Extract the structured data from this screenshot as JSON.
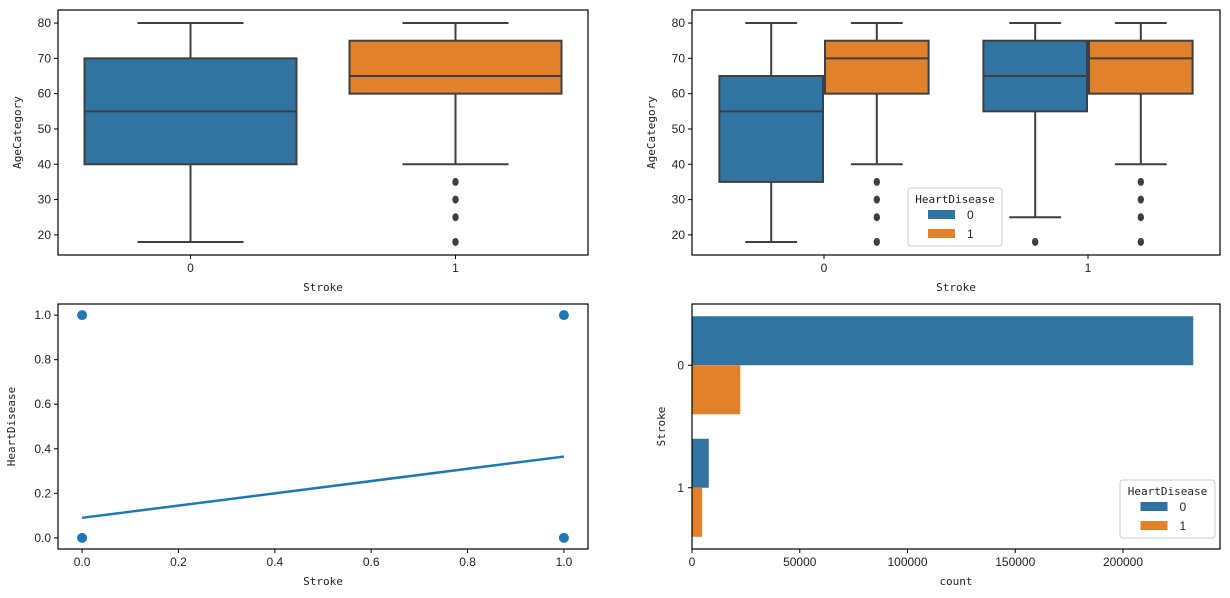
{
  "colors": {
    "blue": "#3274a1",
    "orange": "#e1812c",
    "line_blue": "#1f77b4",
    "edge": "#3f3f3f"
  },
  "chart_data": [
    {
      "type": "box",
      "id": "box-simple",
      "xlabel": "Stroke",
      "ylabel": "AgeCategory",
      "categories": [
        "0",
        "1"
      ],
      "ylim": [
        14.3,
        83.7
      ],
      "yticks": [
        20,
        30,
        40,
        50,
        60,
        70,
        80
      ],
      "boxes": [
        {
          "category": "0",
          "color": "blue",
          "whislo": 18,
          "q1": 40,
          "med": 55,
          "q3": 70,
          "whishi": 80,
          "fliers": []
        },
        {
          "category": "1",
          "color": "orange",
          "whislo": 40,
          "q1": 60,
          "med": 65,
          "q3": 75,
          "whishi": 80,
          "fliers": [
            35,
            30,
            25,
            18
          ]
        }
      ]
    },
    {
      "type": "box",
      "id": "box-hue",
      "xlabel": "Stroke",
      "ylabel": "AgeCategory",
      "categories": [
        "0",
        "1"
      ],
      "ylim": [
        14.3,
        83.7
      ],
      "yticks": [
        20,
        30,
        40,
        50,
        60,
        70,
        80
      ],
      "legend": {
        "title": "HeartDisease",
        "entries": [
          "0",
          "1"
        ],
        "placement": "lower-center"
      },
      "boxes": [
        {
          "category": "0",
          "hue": "0",
          "color": "blue",
          "whislo": 18,
          "q1": 35,
          "med": 55,
          "q3": 65,
          "whishi": 80,
          "fliers": []
        },
        {
          "category": "0",
          "hue": "1",
          "color": "orange",
          "whislo": 40,
          "q1": 60,
          "med": 70,
          "q3": 75,
          "whishi": 80,
          "fliers": [
            35,
            30,
            25,
            18
          ]
        },
        {
          "category": "1",
          "hue": "0",
          "color": "blue",
          "whislo": 25,
          "q1": 55,
          "med": 65,
          "q3": 75,
          "whishi": 80,
          "fliers": [
            18
          ]
        },
        {
          "category": "1",
          "hue": "1",
          "color": "orange",
          "whislo": 40,
          "q1": 60,
          "med": 70,
          "q3": 75,
          "whishi": 80,
          "fliers": [
            35,
            30,
            25,
            18
          ]
        }
      ]
    },
    {
      "type": "scatter",
      "id": "regplot",
      "xlabel": "Stroke",
      "ylabel": "HeartDisease",
      "xlim": [
        -0.05,
        1.05
      ],
      "ylim": [
        -0.05,
        1.05
      ],
      "xticks": [
        "0.0",
        "0.2",
        "0.4",
        "0.6",
        "0.8",
        "1.0"
      ],
      "yticks": [
        "0.0",
        "0.2",
        "0.4",
        "0.6",
        "0.8",
        "1.0"
      ],
      "points": [
        {
          "x": 0,
          "y": 1
        },
        {
          "x": 0,
          "y": 0
        },
        {
          "x": 1,
          "y": 1
        },
        {
          "x": 1,
          "y": 0
        }
      ],
      "regression_line": {
        "x": [
          0,
          1
        ],
        "y": [
          0.09,
          0.365
        ]
      }
    },
    {
      "type": "bar",
      "orientation": "horizontal",
      "id": "countplot",
      "xlabel": "count",
      "ylabel": "Stroke",
      "categories": [
        "0",
        "1"
      ],
      "xlim": [
        0,
        245000
      ],
      "xticks": [
        0,
        50000,
        100000,
        150000,
        200000
      ],
      "legend": {
        "title": "HeartDisease",
        "entries": [
          "0",
          "1"
        ],
        "placement": "lower-right"
      },
      "series": [
        {
          "name": "0",
          "color": "blue",
          "values": [
            232600,
            7800
          ]
        },
        {
          "name": "1",
          "color": "orange",
          "values": [
            22400,
            4700
          ]
        }
      ]
    }
  ]
}
